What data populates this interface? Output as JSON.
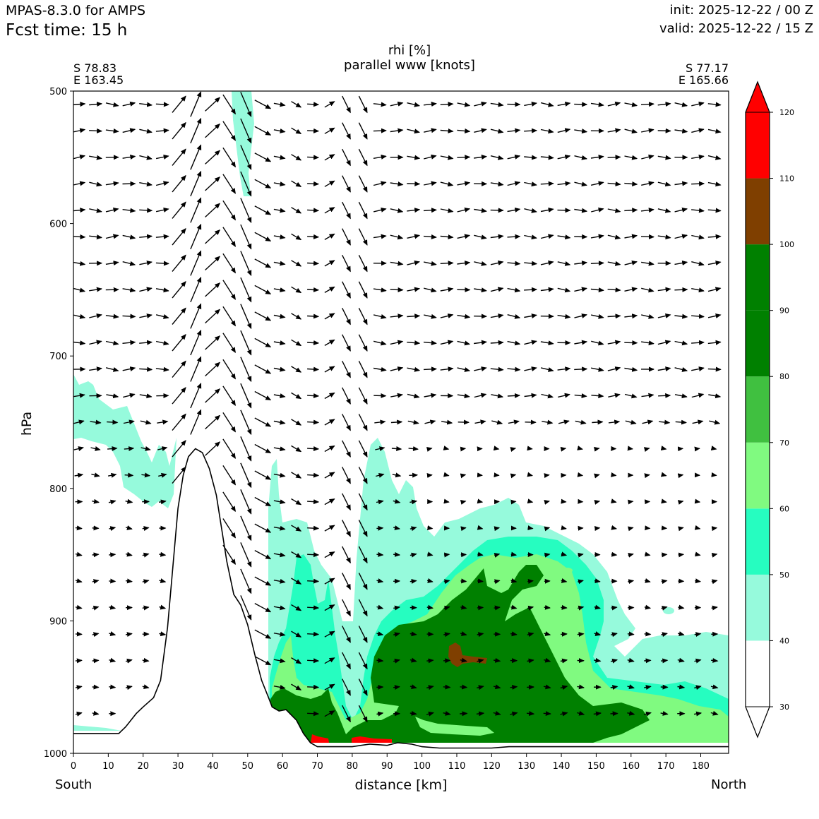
{
  "header": {
    "model": "MPAS-8.3.0 for AMPS",
    "forecast_time": "Fcst time:   15 h",
    "init": "init: 2025-12-22 / 00 Z",
    "valid": "valid: 2025-12-22 / 15 Z"
  },
  "title": {
    "line1": "rhi [%]",
    "line2": "parallel www [knots]"
  },
  "corners": {
    "left_lat": "S 78.83",
    "left_lon": "E 163.45",
    "right_lat": "S 77.17",
    "right_lon": "E 165.66"
  },
  "directions": {
    "start": "South",
    "end": "North"
  },
  "chart_data": {
    "type": "contourf-with-vectors",
    "xlabel": "distance [km]",
    "ylabel": "hPa",
    "xlim": [
      0,
      188
    ],
    "ylim": [
      1000,
      500
    ],
    "x_ticks": [
      0,
      10,
      20,
      30,
      40,
      50,
      60,
      70,
      80,
      90,
      100,
      110,
      120,
      130,
      140,
      150,
      160,
      170,
      180
    ],
    "y_ticks": [
      500,
      600,
      700,
      800,
      900,
      1000
    ],
    "colorbar": {
      "levels": [
        30,
        40,
        50,
        60,
        70,
        80,
        90,
        100,
        110,
        120
      ],
      "bands": [
        {
          "from": 30,
          "to": 40,
          "color": "#ffffff"
        },
        {
          "from": 40,
          "to": 50,
          "color": "#96fadc"
        },
        {
          "from": 50,
          "to": 60,
          "color": "#26fdc0"
        },
        {
          "from": 60,
          "to": 70,
          "color": "#80fa80"
        },
        {
          "from": 70,
          "to": 80,
          "color": "#40c040"
        },
        {
          "from": 80,
          "to": 90,
          "color": "#008000"
        },
        {
          "from": 90,
          "to": 100,
          "color": "#008000"
        },
        {
          "from": 100,
          "to": 110,
          "color": "#7f3f00"
        },
        {
          "from": 110,
          "to": 120,
          "color": "#ff0000"
        }
      ],
      "extend": "both",
      "under_color": "#ffffff",
      "over_color": "#ff0000"
    },
    "terrain_profile": [
      [
        0,
        985
      ],
      [
        13,
        985
      ],
      [
        15,
        980
      ],
      [
        18,
        970
      ],
      [
        20,
        965
      ],
      [
        23,
        958
      ],
      [
        25,
        945
      ],
      [
        27,
        905
      ],
      [
        28.5,
        860
      ],
      [
        30,
        815
      ],
      [
        31.5,
        790
      ],
      [
        33,
        776
      ],
      [
        35,
        770
      ],
      [
        37,
        773
      ],
      [
        39,
        785
      ],
      [
        41,
        805
      ],
      [
        42.5,
        830
      ],
      [
        44,
        855
      ],
      [
        46,
        880
      ],
      [
        48,
        888
      ],
      [
        50,
        903
      ],
      [
        52,
        925
      ],
      [
        54,
        945
      ],
      [
        56,
        958
      ],
      [
        57,
        965
      ],
      [
        59,
        968
      ],
      [
        61,
        967
      ],
      [
        64,
        975
      ],
      [
        66,
        985
      ],
      [
        68,
        992
      ],
      [
        70,
        995
      ],
      [
        80,
        995
      ],
      [
        85,
        993
      ],
      [
        90,
        994
      ],
      [
        93,
        992
      ],
      [
        97,
        993
      ],
      [
        100,
        995
      ],
      [
        105,
        996
      ],
      [
        120,
        996
      ],
      [
        125,
        995
      ],
      [
        188,
        995
      ]
    ]
  }
}
